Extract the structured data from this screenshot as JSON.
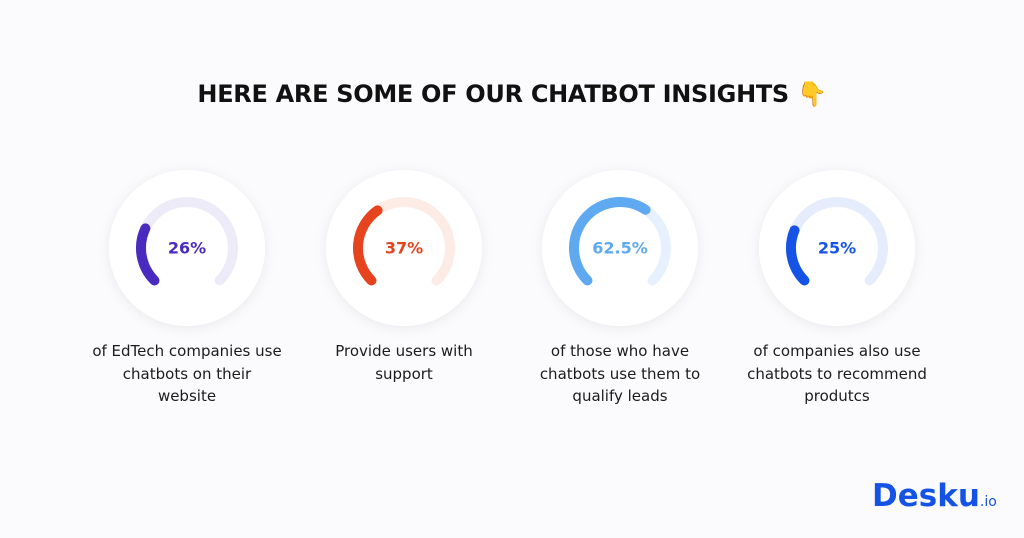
{
  "chart_data": {
    "type": "gauge",
    "title": "HERE ARE SOME OF OUR CHATBOT INSIGHTS 👇",
    "categories": [
      "of EdTech companies use chatbots on their website",
      "Provide users with support",
      "of those who have chatbots use them to qualify leads",
      "of companies also use chatbots to recommend produtcs"
    ],
    "values": [
      26,
      37,
      62.5,
      25
    ],
    "value_labels": [
      "26%",
      "37%",
      "62.5%",
      "25%"
    ],
    "colors": [
      "#4a2bbf",
      "#e5441f",
      "#5ea9ef",
      "#1553e6"
    ],
    "track_colors": [
      "#eeebf9",
      "#fdebe5",
      "#e7f1fd",
      "#e5ecfc"
    ],
    "ylim": [
      0,
      100
    ]
  },
  "brand": {
    "name": "Desku",
    "suffix": ".io"
  }
}
